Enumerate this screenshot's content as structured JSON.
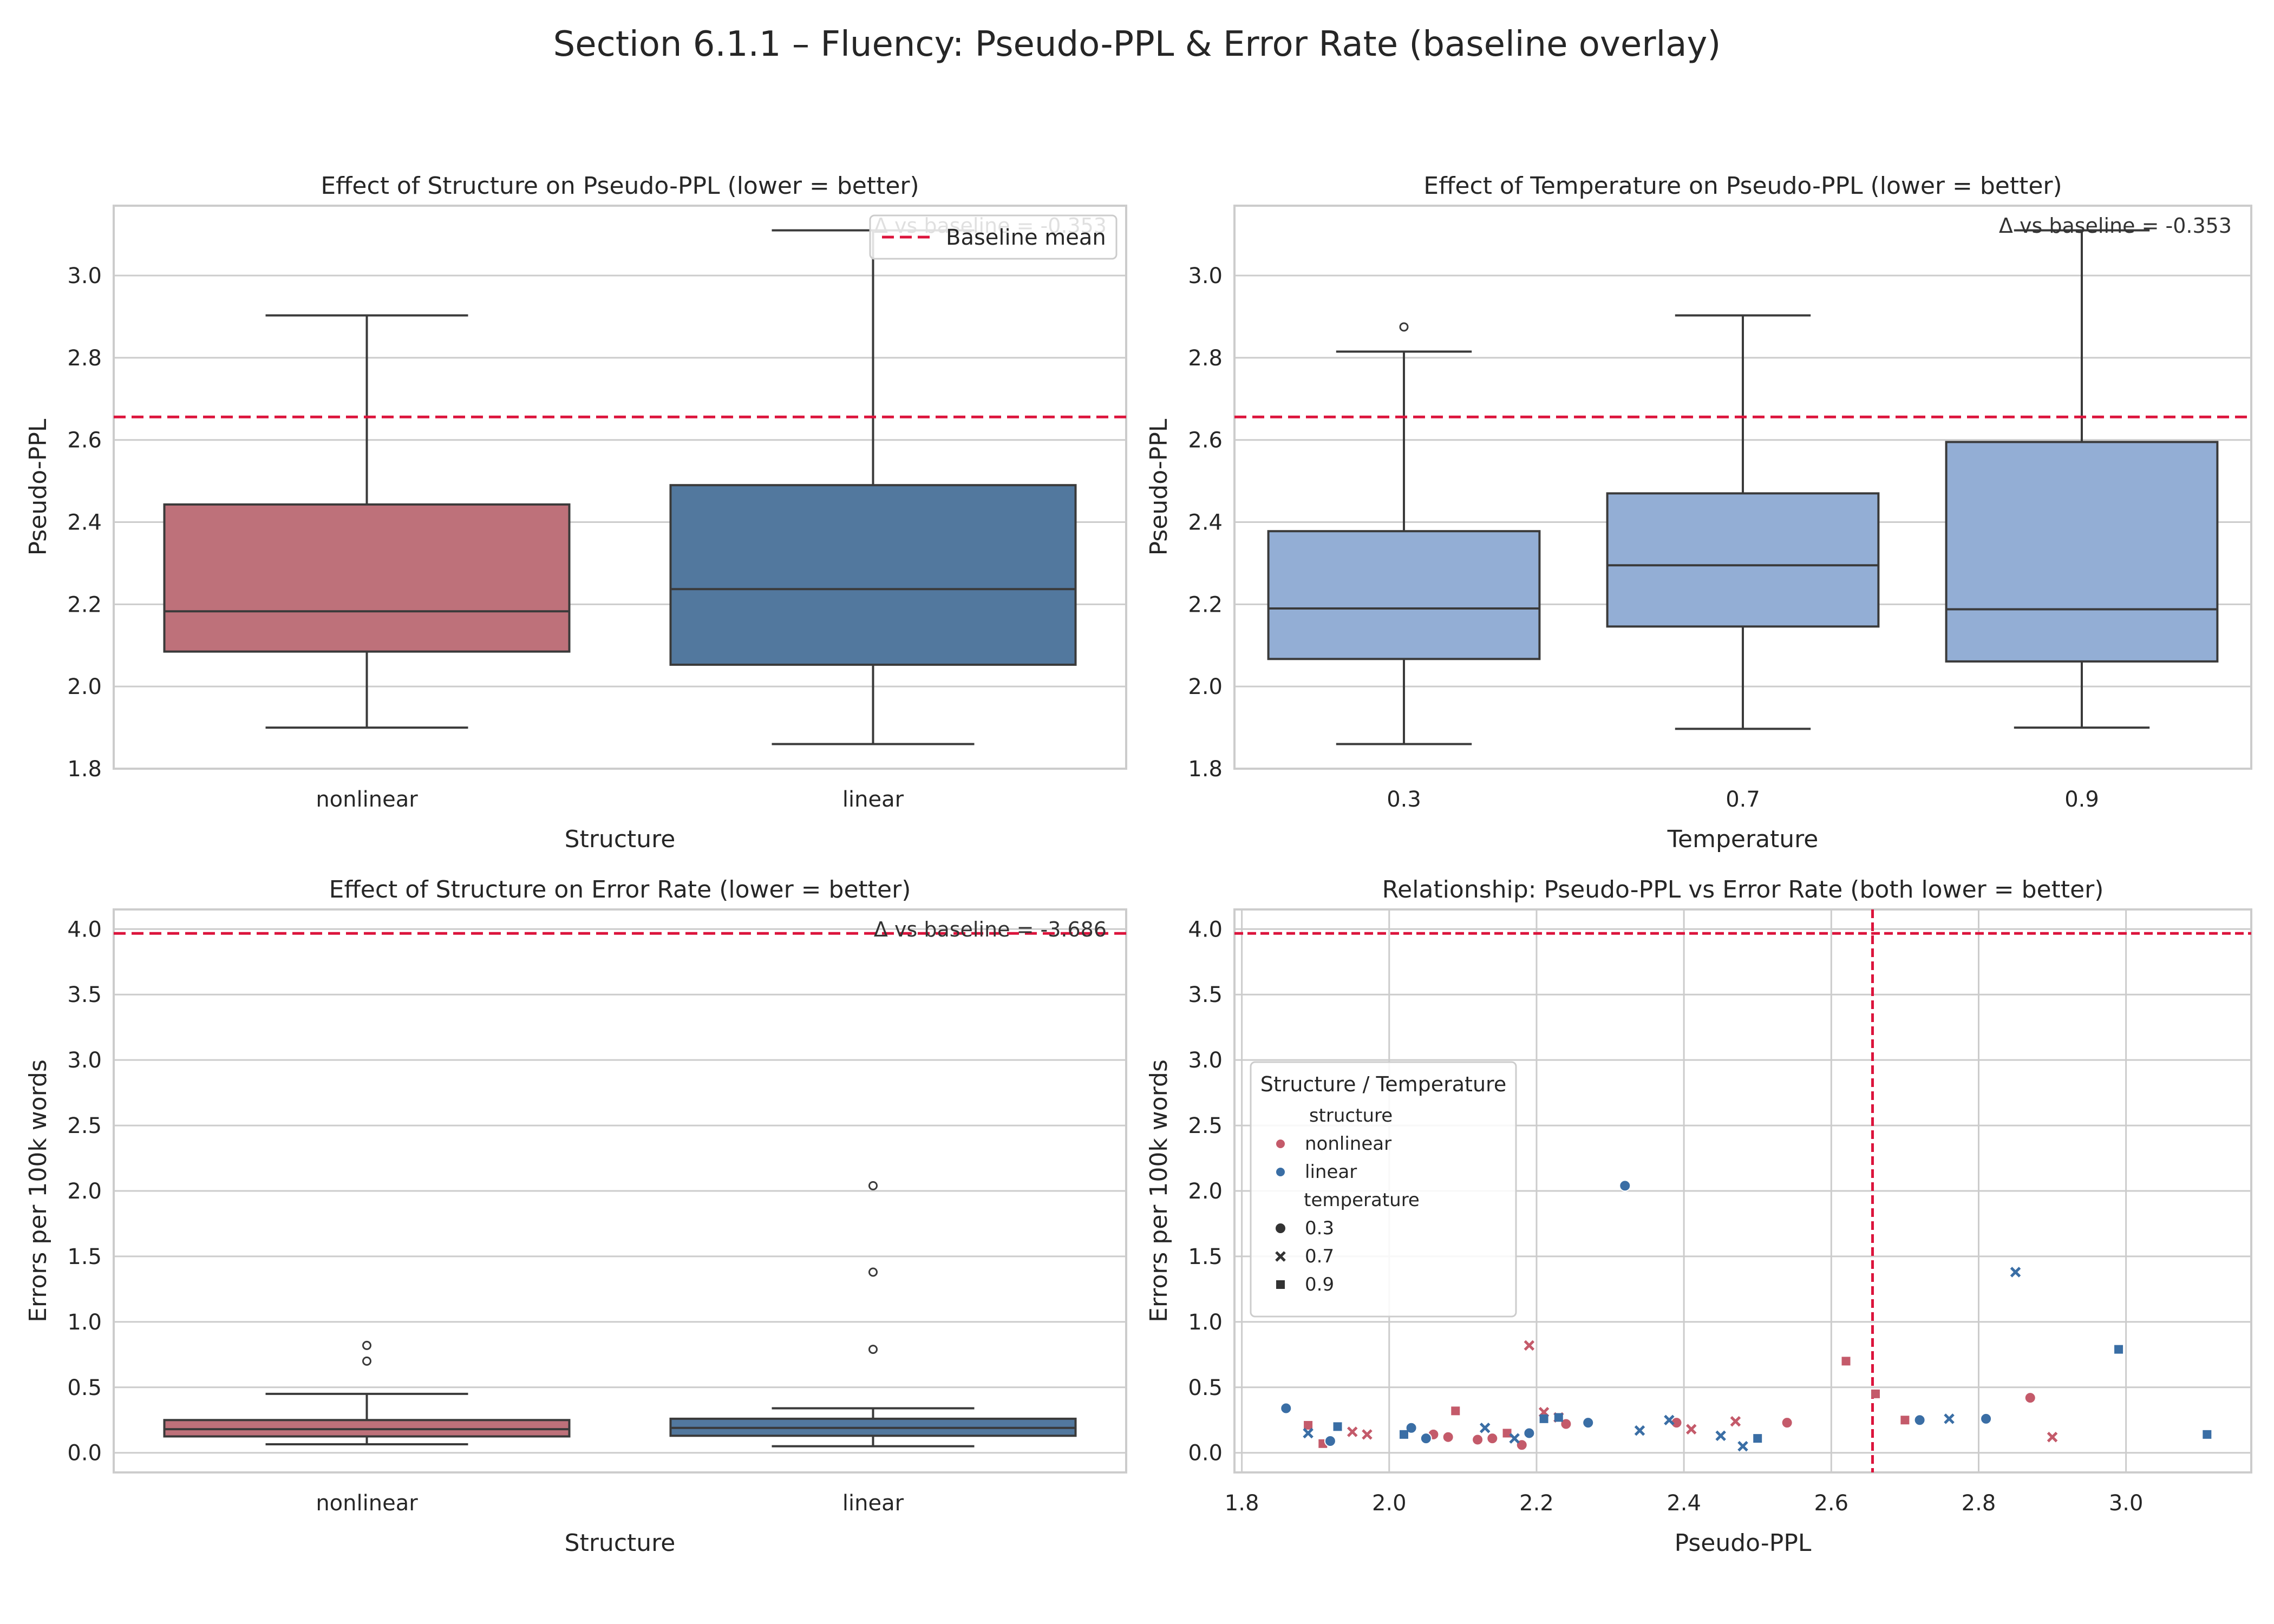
{
  "suptitle": "Section 6.1.1 – Fluency: Pseudo-PPL & Error Rate (baseline overlay)",
  "colors": {
    "nonlinear": "#be717a",
    "linear": "#52789e",
    "temperature_box": "#93aed5",
    "baseline": "#dc143c",
    "grid": "#cccccc",
    "axis": "#cccccc",
    "box_edge": "#3a3a3a",
    "scatter_nonlinear": "#c45a6a",
    "scatter_linear": "#3a6ea5"
  },
  "chart_data": [
    {
      "id": "structure_ppl",
      "type": "box",
      "title": "Effect of Structure on Pseudo-PPL (lower = better)",
      "xlabel": "Structure",
      "ylabel": "Pseudo-PPL",
      "ylim": [
        1.8,
        3.17
      ],
      "yticks": [
        "1.8",
        "2.0",
        "2.2",
        "2.4",
        "2.6",
        "2.8",
        "3.0"
      ],
      "grid": true,
      "categories": [
        "nonlinear",
        "linear"
      ],
      "boxes": [
        {
          "category": "nonlinear",
          "color_key": "nonlinear",
          "whislo": 1.9,
          "q1": 2.085,
          "med": 2.183,
          "q3": 2.443,
          "whishi": 2.903,
          "fliers": []
        },
        {
          "category": "linear",
          "color_key": "linear",
          "whislo": 1.86,
          "q1": 2.053,
          "med": 2.237,
          "q3": 2.49,
          "whishi": 3.11,
          "fliers": []
        }
      ],
      "baseline": 2.656,
      "annotation": "Δ vs baseline = -0.353",
      "legend": {
        "position": "upper right",
        "entries": [
          "Baseline mean"
        ]
      }
    },
    {
      "id": "temperature_ppl",
      "type": "box",
      "title": "Effect of Temperature on Pseudo-PPL (lower = better)",
      "xlabel": "Temperature",
      "ylabel": "Pseudo-PPL",
      "ylim": [
        1.8,
        3.17
      ],
      "yticks": [
        "1.8",
        "2.0",
        "2.2",
        "2.4",
        "2.6",
        "2.8",
        "3.0"
      ],
      "grid": true,
      "categories": [
        "0.3",
        "0.7",
        "0.9"
      ],
      "boxes": [
        {
          "category": "0.3",
          "color_key": "temperature_box",
          "whislo": 1.86,
          "q1": 2.067,
          "med": 2.19,
          "q3": 2.378,
          "whishi": 2.815,
          "fliers": [
            2.875
          ]
        },
        {
          "category": "0.7",
          "color_key": "temperature_box",
          "whislo": 1.897,
          "q1": 2.146,
          "med": 2.295,
          "q3": 2.47,
          "whishi": 2.903,
          "fliers": []
        },
        {
          "category": "0.9",
          "color_key": "temperature_box",
          "whislo": 1.9,
          "q1": 2.061,
          "med": 2.188,
          "q3": 2.595,
          "whishi": 3.11,
          "fliers": []
        }
      ],
      "baseline": 2.656,
      "annotation": "Δ vs baseline = -0.353"
    },
    {
      "id": "structure_error",
      "type": "box",
      "title": "Effect of Structure on Error Rate (lower = better)",
      "xlabel": "Structure",
      "ylabel": "Errors per 100k words",
      "ylim": [
        -0.15,
        4.15
      ],
      "yticks": [
        "0.0",
        "0.5",
        "1.0",
        "1.5",
        "2.0",
        "2.5",
        "3.0",
        "3.5",
        "4.0"
      ],
      "grid": true,
      "categories": [
        "nonlinear",
        "linear"
      ],
      "boxes": [
        {
          "category": "nonlinear",
          "color_key": "nonlinear",
          "whislo": 0.065,
          "q1": 0.125,
          "med": 0.18,
          "q3": 0.25,
          "whishi": 0.45,
          "fliers": [
            0.7,
            0.82
          ]
        },
        {
          "category": "linear",
          "color_key": "linear",
          "whislo": 0.05,
          "q1": 0.13,
          "med": 0.19,
          "q3": 0.26,
          "whishi": 0.34,
          "fliers": [
            0.79,
            1.38,
            2.04
          ]
        }
      ],
      "baseline": 3.967,
      "annotation": "Δ vs baseline = -3.686"
    },
    {
      "id": "ppl_vs_error",
      "type": "scatter",
      "title": "Relationship: Pseudo-PPL vs Error Rate (both lower = better)",
      "xlabel": "Pseudo-PPL",
      "ylabel": "Errors per 100k words",
      "xlim": [
        1.79,
        3.17
      ],
      "ylim": [
        -0.15,
        4.15
      ],
      "xticks": [
        "1.8",
        "2.0",
        "2.2",
        "2.4",
        "2.6",
        "2.8",
        "3.0"
      ],
      "yticks": [
        "0.0",
        "0.5",
        "1.0",
        "1.5",
        "2.0",
        "2.5",
        "3.0",
        "3.5",
        "4.0"
      ],
      "grid": true,
      "baseline_x": 2.656,
      "baseline_y": 3.967,
      "legend": {
        "position": "center left",
        "title": "Structure / Temperature",
        "hue_title": "structure",
        "hue_entries": [
          "nonlinear",
          "linear"
        ],
        "style_title": "temperature",
        "style_entries": [
          "0.3",
          "0.7",
          "0.9"
        ]
      },
      "series": [
        {
          "structure": "nonlinear",
          "temperature": "0.3",
          "marker": "circle",
          "points": [
            [
              2.06,
              0.14
            ],
            [
              2.08,
              0.12
            ],
            [
              2.12,
              0.1
            ],
            [
              2.14,
              0.11
            ],
            [
              2.18,
              0.06
            ],
            [
              2.24,
              0.22
            ],
            [
              2.39,
              0.23
            ],
            [
              2.54,
              0.23
            ],
            [
              2.87,
              0.42
            ]
          ]
        },
        {
          "structure": "nonlinear",
          "temperature": "0.7",
          "marker": "x",
          "points": [
            [
              1.95,
              0.16
            ],
            [
              1.97,
              0.14
            ],
            [
              2.19,
              0.82
            ],
            [
              2.21,
              0.31
            ],
            [
              2.23,
              0.27
            ],
            [
              2.41,
              0.18
            ],
            [
              2.47,
              0.24
            ],
            [
              2.9,
              0.12
            ]
          ]
        },
        {
          "structure": "nonlinear",
          "temperature": "0.9",
          "marker": "square",
          "points": [
            [
              1.89,
              0.21
            ],
            [
              1.91,
              0.07
            ],
            [
              2.09,
              0.32
            ],
            [
              2.16,
              0.15
            ],
            [
              2.62,
              0.7
            ],
            [
              2.66,
              0.45
            ],
            [
              2.7,
              0.25
            ]
          ]
        },
        {
          "structure": "linear",
          "temperature": "0.3",
          "marker": "circle",
          "points": [
            [
              1.86,
              0.34
            ],
            [
              1.92,
              0.09
            ],
            [
              2.03,
              0.19
            ],
            [
              2.05,
              0.11
            ],
            [
              2.19,
              0.15
            ],
            [
              2.27,
              0.23
            ],
            [
              2.32,
              2.04
            ],
            [
              2.72,
              0.25
            ],
            [
              2.81,
              0.26
            ]
          ]
        },
        {
          "structure": "linear",
          "temperature": "0.7",
          "marker": "x",
          "points": [
            [
              1.89,
              0.15
            ],
            [
              2.13,
              0.19
            ],
            [
              2.17,
              0.11
            ],
            [
              2.34,
              0.17
            ],
            [
              2.38,
              0.25
            ],
            [
              2.45,
              0.13
            ],
            [
              2.48,
              0.05
            ],
            [
              2.76,
              0.26
            ],
            [
              2.85,
              1.38
            ]
          ]
        },
        {
          "structure": "linear",
          "temperature": "0.9",
          "marker": "square",
          "points": [
            [
              1.93,
              0.2
            ],
            [
              2.02,
              0.14
            ],
            [
              2.21,
              0.26
            ],
            [
              2.23,
              0.27
            ],
            [
              2.5,
              0.11
            ],
            [
              2.99,
              0.79
            ],
            [
              3.11,
              0.14
            ]
          ]
        }
      ]
    }
  ],
  "legend_labels": {
    "baseline_mean": "Baseline mean"
  }
}
